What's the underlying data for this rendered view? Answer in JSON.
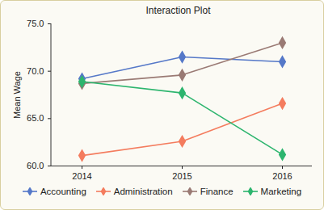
{
  "chart_data": {
    "type": "line",
    "title": "Interaction Plot",
    "y_label": "Mean Wage",
    "categories": [
      "2014",
      "2015",
      "2016"
    ],
    "series": [
      {
        "name": "Accounting",
        "color": "#5578c8",
        "values": [
          69.2,
          71.5,
          71.0
        ]
      },
      {
        "name": "Administration",
        "color": "#f47c5e",
        "values": [
          61.1,
          62.6,
          66.6
        ]
      },
      {
        "name": "Finance",
        "color": "#9a7a74",
        "values": [
          68.7,
          69.6,
          73.0
        ]
      },
      {
        "name": "Marketing",
        "color": "#2db56e",
        "values": [
          68.9,
          67.7,
          61.2
        ]
      }
    ],
    "ylim": [
      60,
      75
    ],
    "yticks": [
      {
        "value": 60,
        "label": "60.0"
      },
      {
        "value": 65,
        "label": "65.0"
      },
      {
        "value": 70,
        "label": "70.0"
      },
      {
        "value": 75,
        "label": "75.0"
      }
    ],
    "grid": false,
    "legend": "bottom",
    "marker": "diamond"
  }
}
